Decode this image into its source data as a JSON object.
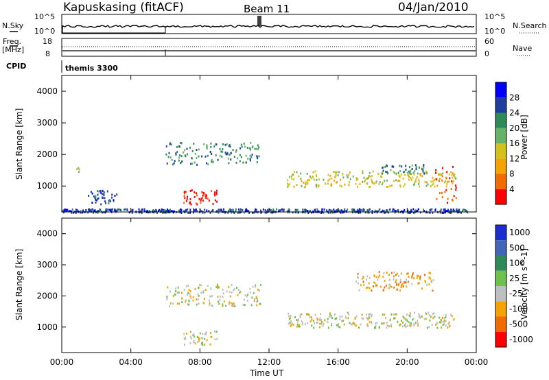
{
  "header": {
    "station": "Kapuskasing (fitACF)",
    "beam": "Beam 11",
    "date": "04/Jan/2010"
  },
  "top_panels": {
    "nsky_label": "N.Sky",
    "nsearch_label": "N.Search",
    "nsky_ticks": [
      "10^5",
      "10^0"
    ],
    "nsearch_ticks": [
      "10^5",
      "10^0"
    ],
    "freq_label_1": "Freq.",
    "freq_label_2": "[MHz]",
    "freq_ticks": [
      "18",
      "8"
    ],
    "nave_label": "Nave",
    "nave_ticks": [
      "60",
      "0"
    ],
    "cpid_label": "CPID",
    "cpid_value": "themis 3300"
  },
  "colors": {
    "power": [
      "#0000ff",
      "#1f3fa0",
      "#2e8b57",
      "#66b266",
      "#d4c21a",
      "#f5a300",
      "#f26a00",
      "#ff0000"
    ],
    "velocity": [
      "#1a2fd0",
      "#3f66b8",
      "#2e8b57",
      "#6cc24a",
      "#bfbfbf",
      "#f5a300",
      "#f26a00",
      "#ff0000"
    ],
    "ground": "#c8c8c8"
  },
  "chart_data": [
    {
      "type": "heatmap",
      "title": "",
      "xlabel": "Time UT",
      "ylabel": "Slant Range [km]",
      "x_ticks": [
        "00:00",
        "04:00",
        "08:00",
        "12:00",
        "16:00",
        "20:00",
        "00:00"
      ],
      "y_ticks": [
        "1000",
        "2000",
        "3000",
        "4000"
      ],
      "ylim": [
        180,
        4500
      ],
      "colorbar_label": "Power [dB]",
      "colorbar_ticks": [
        "4",
        "8",
        "12",
        "16",
        "20",
        "24",
        "28"
      ],
      "colorbar_range": [
        0,
        32
      ],
      "scatter_regions": [
        {
          "t_start": 0.8,
          "t_end": 1.0,
          "r_start": 1450,
          "r_end": 1600,
          "level": 3
        },
        {
          "t_start": 1.5,
          "t_end": 3.2,
          "r_start": 450,
          "r_end": 900,
          "level": 1
        },
        {
          "t_start": 6.0,
          "t_end": 11.5,
          "r_start": 1700,
          "r_end": 2400,
          "level": 2
        },
        {
          "t_start": 7.0,
          "t_end": 9.0,
          "r_start": 450,
          "r_end": 900,
          "level": 7
        },
        {
          "t_start": 13.0,
          "t_end": 22.8,
          "r_start": 1000,
          "r_end": 1500,
          "level": 4
        },
        {
          "t_start": 18.5,
          "t_end": 21.0,
          "r_start": 1400,
          "r_end": 1700,
          "level": 2
        },
        {
          "t_start": 21.5,
          "t_end": 22.8,
          "r_start": 500,
          "r_end": 1900,
          "level": 6
        },
        {
          "t_start": 0.0,
          "t_end": 23.5,
          "r_start": 180,
          "r_end": 300,
          "level": 1
        }
      ]
    },
    {
      "type": "heatmap",
      "title": "",
      "xlabel": "Time UT",
      "ylabel": "Slant Range [km]",
      "x_ticks": [
        "00:00",
        "04:00",
        "08:00",
        "12:00",
        "16:00",
        "20:00",
        "00:00"
      ],
      "y_ticks": [
        "1000",
        "2000",
        "3000",
        "4000"
      ],
      "ylim": [
        180,
        4500
      ],
      "colorbar_label": "Velocity [m s^-1]",
      "colorbar_ticks": [
        "1000",
        "500",
        "100",
        "25",
        "-25",
        "-100",
        "-500",
        "-1000"
      ],
      "scatter_regions": [
        {
          "t_start": 6.0,
          "t_end": 11.5,
          "r_start": 1700,
          "r_end": 2400,
          "level": 4
        },
        {
          "t_start": 13.0,
          "t_end": 22.8,
          "r_start": 1000,
          "r_end": 1500,
          "level": 4
        },
        {
          "t_start": 7.0,
          "t_end": 9.0,
          "r_start": 450,
          "r_end": 900,
          "level": 4
        },
        {
          "t_start": 17.0,
          "t_end": 21.5,
          "r_start": 2200,
          "r_end": 2800,
          "level": 5
        }
      ]
    }
  ]
}
